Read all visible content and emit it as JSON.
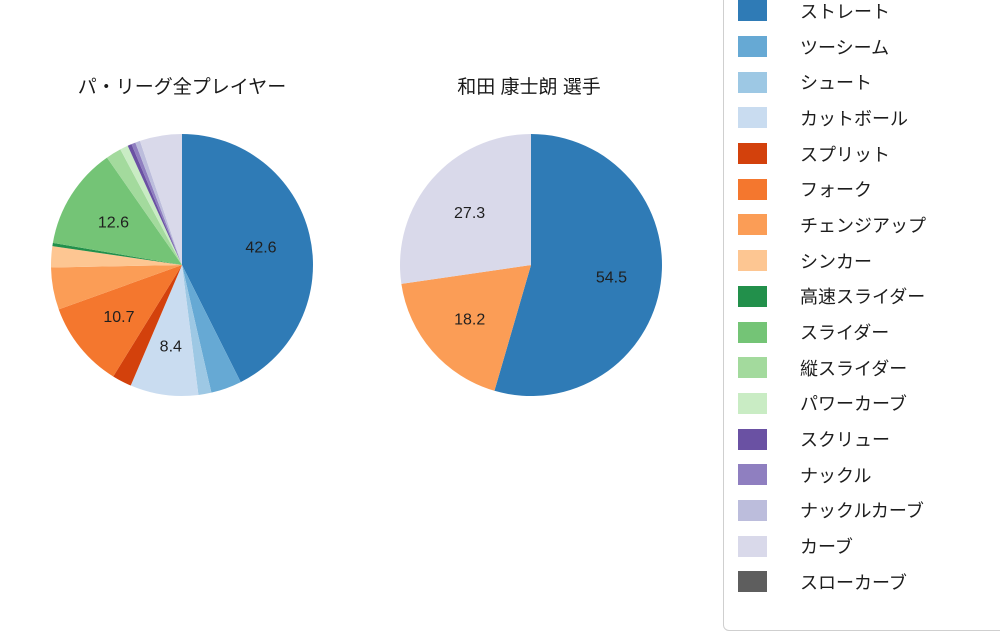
{
  "page": {
    "background": "#ffffff"
  },
  "palette": {
    "ストレート": "#2f7bb6",
    "ツーシーム": "#66a9d4",
    "シュート": "#9dc8e4",
    "カットボール": "#c9dcf0",
    "スプリット": "#d3410c",
    "フォーク": "#f4772e",
    "チェンジアップ": "#fb9d56",
    "シンカー": "#fdc692",
    "高速スライダー": "#22904b",
    "スライダー": "#74c476",
    "縦スライダー": "#a3da9d",
    "パワーカーブ": "#c9ecc4",
    "スクリュー": "#6a51a3",
    "ナックル": "#8f7fc0",
    "ナックルカーブ": "#bcbddc",
    "カーブ": "#d9d9ea",
    "スローカーブ": "#5e5e5e"
  },
  "legend": {
    "items": [
      "ストレート",
      "ツーシーム",
      "シュート",
      "カットボール",
      "スプリット",
      "フォーク",
      "チェンジアップ",
      "シンカー",
      "高速スライダー",
      "スライダー",
      "縦スライダー",
      "パワーカーブ",
      "スクリュー",
      "ナックル",
      "ナックルカーブ",
      "カーブ",
      "スローカーブ"
    ]
  },
  "chart_data": [
    {
      "type": "pie",
      "title": "パ・リーグ全プレイヤー",
      "unit": "percent",
      "start_angle": "top",
      "direction": "clockwise",
      "note": "Only 42.6, 8.4, 10.7 and 12.6 are labeled in the figure; other slice values are estimated from arc angles.",
      "slices": [
        {
          "name": "ストレート",
          "value": 42.6,
          "label": "42.6"
        },
        {
          "name": "ツーシーム",
          "value": 3.8
        },
        {
          "name": "シュート",
          "value": 1.6
        },
        {
          "name": "カットボール",
          "value": 8.4,
          "label": "8.4"
        },
        {
          "name": "スプリット",
          "value": 2.4
        },
        {
          "name": "フォーク",
          "value": 10.7,
          "label": "10.7"
        },
        {
          "name": "チェンジアップ",
          "value": 5.2
        },
        {
          "name": "シンカー",
          "value": 2.6
        },
        {
          "name": "高速スライダー",
          "value": 0.4
        },
        {
          "name": "スライダー",
          "value": 12.6,
          "label": "12.6"
        },
        {
          "name": "縦スライダー",
          "value": 1.9
        },
        {
          "name": "パワーカーブ",
          "value": 1.0
        },
        {
          "name": "スクリュー",
          "value": 0.5
        },
        {
          "name": "ナックル",
          "value": 0.5
        },
        {
          "name": "ナックルカーブ",
          "value": 0.6
        },
        {
          "name": "カーブ",
          "value": 5.2
        }
      ]
    },
    {
      "type": "pie",
      "title": "和田 康士朗  選手",
      "unit": "percent",
      "start_angle": "top",
      "direction": "clockwise",
      "slices": [
        {
          "name": "ストレート",
          "value": 54.5,
          "label": "54.5"
        },
        {
          "name": "チェンジアップ",
          "value": 18.2,
          "label": "18.2"
        },
        {
          "name": "カーブ",
          "value": 27.3,
          "label": "27.3"
        }
      ]
    }
  ]
}
